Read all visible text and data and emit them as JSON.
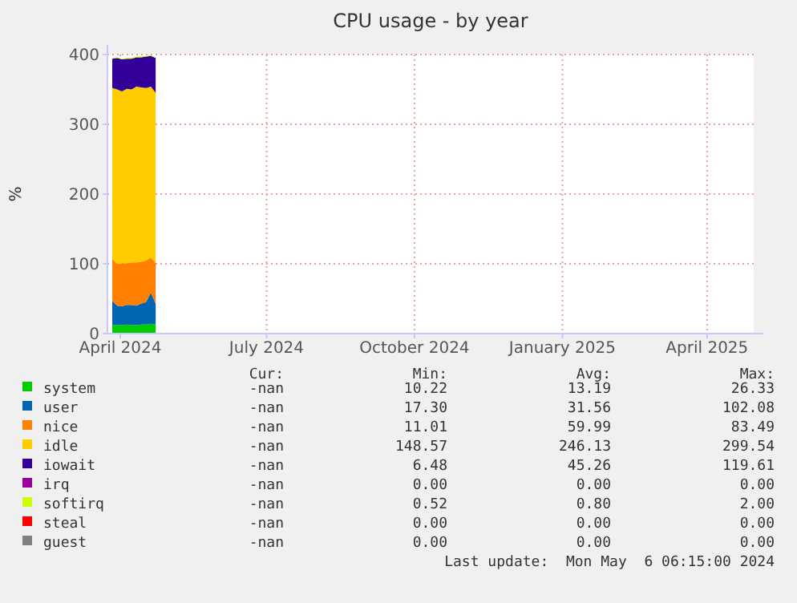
{
  "chart_data": {
    "type": "area",
    "stacked": true,
    "title": "CPU usage - by year",
    "ylabel": "%",
    "x": [
      "2024-03-27",
      "2024-03-30",
      "2024-04-02",
      "2024-04-05",
      "2024-04-08",
      "2024-04-11",
      "2024-04-14",
      "2024-04-17",
      "2024-04-20",
      "2024-04-23"
    ],
    "xlim": [
      "2024-03-24",
      "2025-04-30"
    ],
    "xticks": [
      {
        "value": "2024-04-01",
        "label": "April 2024"
      },
      {
        "value": "2024-07-01",
        "label": "July 2024"
      },
      {
        "value": "2024-10-01",
        "label": "October 2024"
      },
      {
        "value": "2025-01-01",
        "label": "January 2025"
      },
      {
        "value": "2025-04-01",
        "label": "April 2025"
      }
    ],
    "ylim": [
      0,
      400
    ],
    "yticks": [
      0,
      100,
      200,
      300,
      400
    ],
    "grid": true,
    "legend": "bottom",
    "series": [
      {
        "name": "system",
        "color": "#00cc00",
        "values": [
          12,
          12,
          12,
          13,
          12,
          12,
          13,
          13,
          14,
          13
        ]
      },
      {
        "name": "user",
        "color": "#0066b3",
        "values": [
          35,
          28,
          27,
          28,
          29,
          28,
          30,
          32,
          45,
          30
        ]
      },
      {
        "name": "nice",
        "color": "#ff8000",
        "values": [
          60,
          60,
          62,
          60,
          61,
          62,
          60,
          60,
          50,
          58
        ]
      },
      {
        "name": "idle",
        "color": "#ffcc00",
        "values": [
          245,
          250,
          246,
          250,
          248,
          252,
          250,
          247,
          245,
          244
        ]
      },
      {
        "name": "iowait",
        "color": "#330099",
        "values": [
          42,
          45,
          46,
          43,
          44,
          42,
          43,
          45,
          44,
          50
        ]
      },
      {
        "name": "irq",
        "color": "#990099",
        "values": [
          null,
          null,
          null,
          null,
          null,
          null,
          null,
          null,
          null,
          null
        ]
      },
      {
        "name": "softirq",
        "color": "#ccff00",
        "values": [
          1,
          1,
          1,
          1,
          1,
          1,
          1,
          1,
          1,
          1
        ]
      },
      {
        "name": "steal",
        "color": "#ff0000",
        "values": [
          null,
          null,
          null,
          null,
          null,
          null,
          null,
          null,
          null,
          null
        ]
      },
      {
        "name": "guest",
        "color": "#808080",
        "values": [
          null,
          null,
          null,
          null,
          null,
          null,
          null,
          null,
          null,
          null
        ]
      }
    ],
    "annotations": [
      "Cur:",
      "Min:",
      "Avg:",
      "Max:",
      "-nan",
      "10.22",
      "13.19",
      "26.33",
      "-nan",
      "17.30",
      "31.56",
      "102.08",
      "-nan",
      "11.01",
      "59.99",
      "83.49",
      "-nan",
      "148.57",
      "246.13",
      "299.54",
      "-nan",
      "6.48",
      "45.26",
      "119.61",
      "-nan",
      "0.00",
      "0.00",
      "0.00",
      "-nan",
      "0.52",
      "0.80",
      "2.00",
      "-nan",
      "0.00",
      "0.00",
      "0.00",
      "-nan",
      "0.00",
      "0.00",
      "0.00",
      "Last update:  Mon May  6 06:15:00 2024"
    ]
  }
}
